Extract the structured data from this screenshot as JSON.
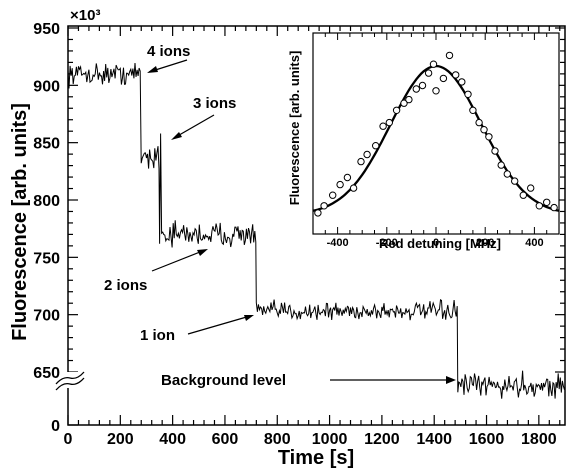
{
  "chart_data": [
    {
      "type": "line",
      "xlabel": "Time [s]",
      "ylabel": "Fluorescence [arb. units]",
      "y_multiplier_label": "×10³",
      "xlim": [
        0,
        1900
      ],
      "ylim": [
        600,
        950
      ],
      "y_axis_break": "between 600 and 650",
      "x_ticks": [
        "0",
        "200",
        "400",
        "600",
        "800",
        "1000",
        "1200",
        "1400",
        "1600",
        "1800"
      ],
      "y_ticks": [
        "0",
        "650",
        "700",
        "750",
        "800",
        "850",
        "900",
        "950"
      ],
      "grid": false,
      "series": [
        {
          "segments": [
            {
              "x_start": 0,
              "x_end": 280,
              "level": 910,
              "noise": 7
            },
            {
              "x_start": 280,
              "x_end": 350,
              "level": 838,
              "noise": 10
            },
            {
              "x_start": 350,
              "x_end": 720,
              "level": 770,
              "noise": 8
            },
            {
              "x_start": 720,
              "x_end": 1490,
              "level": 703,
              "noise": 6
            },
            {
              "x_start": 1490,
              "x_end": 1900,
              "level": 638,
              "noise": 8
            }
          ],
          "spike": {
            "x": 355,
            "y": 858
          }
        }
      ],
      "annotations": [
        {
          "label": "4 ions",
          "points_to": [
            290,
            910
          ]
        },
        {
          "label": "3 ions",
          "points_to": [
            355,
            848
          ]
        },
        {
          "label": "2 ions",
          "points_to": [
            570,
            760
          ]
        },
        {
          "label": "1 ion",
          "points_to": [
            725,
            705
          ]
        },
        {
          "label": "Background level",
          "points_to": [
            1500,
            642
          ]
        }
      ]
    },
    {
      "type": "scatter",
      "xlabel": "Red detuning [MHz]",
      "ylabel": "Fluorescence [arb. units]",
      "xlim": [
        -500,
        500
      ],
      "ylim": [
        0,
        1
      ],
      "x_ticks": [
        "-400",
        "-200",
        "0",
        "200",
        "400"
      ],
      "grid": false,
      "points": [
        [
          -480,
          0.04
        ],
        [
          -455,
          0.08
        ],
        [
          -420,
          0.14
        ],
        [
          -390,
          0.2
        ],
        [
          -360,
          0.24
        ],
        [
          -335,
          0.18
        ],
        [
          -305,
          0.33
        ],
        [
          -280,
          0.37
        ],
        [
          -245,
          0.42
        ],
        [
          -215,
          0.53
        ],
        [
          -190,
          0.55
        ],
        [
          -160,
          0.62
        ],
        [
          -130,
          0.66
        ],
        [
          -110,
          0.68
        ],
        [
          -80,
          0.74
        ],
        [
          -55,
          0.76
        ],
        [
          -30,
          0.83
        ],
        [
          -10,
          0.88
        ],
        [
          0,
          0.73
        ],
        [
          30,
          0.8
        ],
        [
          55,
          0.93
        ],
        [
          80,
          0.82
        ],
        [
          105,
          0.78
        ],
        [
          130,
          0.71
        ],
        [
          150,
          0.62
        ],
        [
          175,
          0.55
        ],
        [
          195,
          0.51
        ],
        [
          215,
          0.47
        ],
        [
          240,
          0.39
        ],
        [
          265,
          0.31
        ],
        [
          290,
          0.26
        ],
        [
          320,
          0.22
        ],
        [
          355,
          0.14
        ],
        [
          385,
          0.18
        ],
        [
          420,
          0.08
        ],
        [
          450,
          0.1
        ],
        [
          480,
          0.07
        ]
      ],
      "fit": {
        "type": "gaussian",
        "center": 0,
        "amplitude": 0.84,
        "sigma": 185,
        "offset": 0.03
      }
    }
  ]
}
